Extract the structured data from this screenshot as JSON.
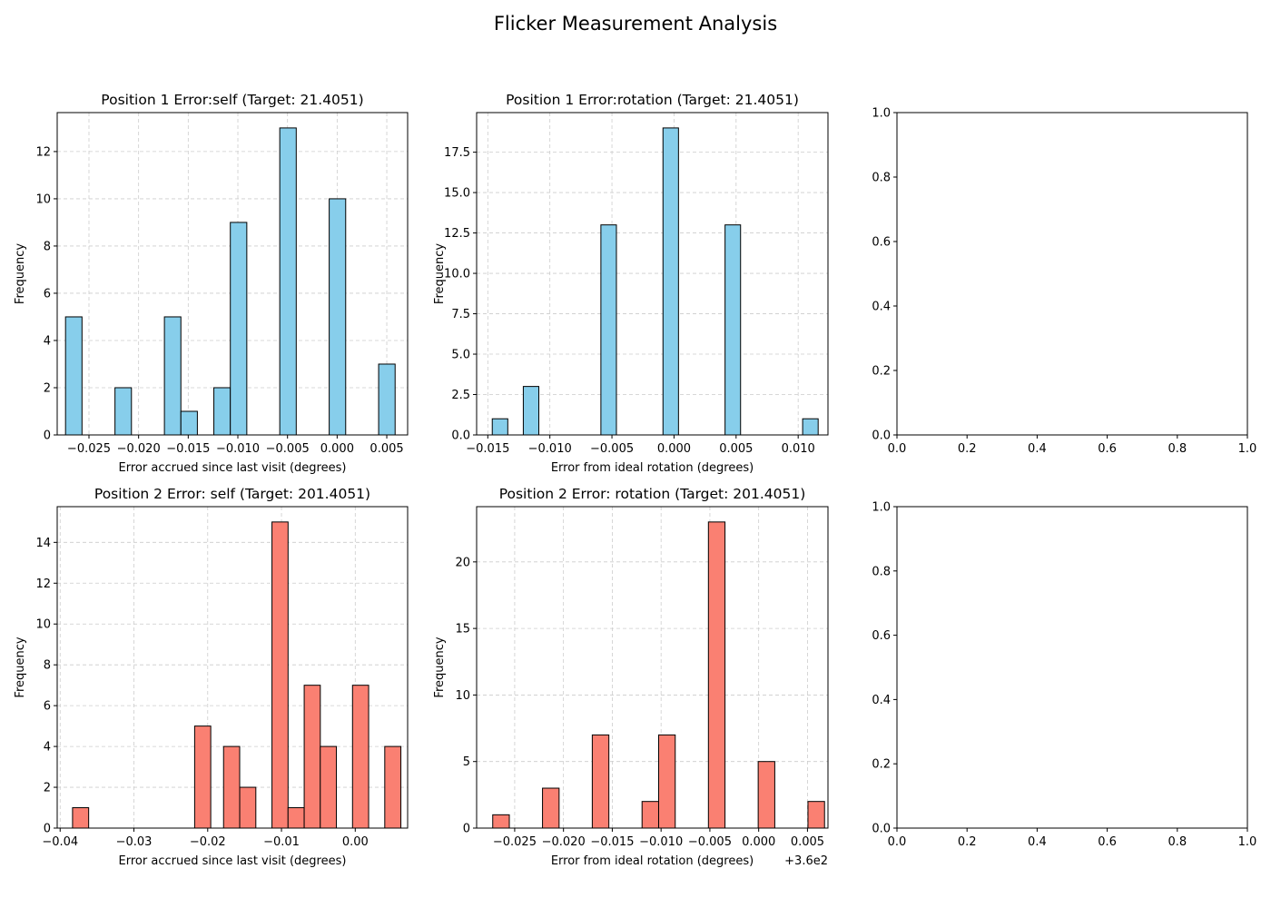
{
  "figure": {
    "title": "Flicker Measurement Analysis"
  },
  "colors": {
    "p1": "#87CEEB",
    "p2": "#FA8072",
    "edge": "#000000",
    "grid": "#cccccc"
  },
  "chart_data": [
    {
      "type": "bar",
      "title": "Position 1 Error:self (Target: 21.4051)",
      "xlabel": "Error accrued since last visit (degrees)",
      "ylabel": "Frequency",
      "xlim": [
        -0.0282,
        0.0071
      ],
      "ylim": [
        0,
        13.65
      ],
      "xticks": [
        -0.025,
        -0.02,
        -0.015,
        -0.01,
        -0.005,
        0.0,
        0.005
      ],
      "xticklabels": [
        "−0.025",
        "−0.020",
        "−0.015",
        "−0.010",
        "−0.005",
        "0.000",
        "0.005"
      ],
      "yticks": [
        0,
        2,
        4,
        6,
        8,
        10,
        12
      ],
      "yticklabels": [
        "0",
        "2",
        "4",
        "6",
        "8",
        "10",
        "12"
      ],
      "bin_width": 0.00166,
      "color": "p1",
      "grid": true,
      "bars": [
        {
          "x": -0.02736,
          "value": 5
        },
        {
          "x": -0.02238,
          "value": 2
        },
        {
          "x": -0.0174,
          "value": 5
        },
        {
          "x": -0.01574,
          "value": 1
        },
        {
          "x": -0.01242,
          "value": 2
        },
        {
          "x": -0.01076,
          "value": 9
        },
        {
          "x": -0.00578,
          "value": 13
        },
        {
          "x": -0.0008,
          "value": 10
        },
        {
          "x": 0.00418,
          "value": 3
        }
      ]
    },
    {
      "type": "bar",
      "title": "Position 1 Error:rotation (Target: 21.4051)",
      "xlabel": "Error from ideal rotation (degrees)",
      "ylabel": "Frequency",
      "xlim": [
        -0.0159,
        0.0124
      ],
      "ylim": [
        0,
        19.95
      ],
      "xticks": [
        -0.015,
        -0.01,
        -0.005,
        0.0,
        0.005,
        0.01
      ],
      "xticklabels": [
        "−0.015",
        "−0.010",
        "−0.005",
        "0.000",
        "0.005",
        "0.010"
      ],
      "yticks": [
        0,
        2.5,
        5,
        7.5,
        10,
        12.5,
        15,
        17.5
      ],
      "yticklabels": [
        "0.0",
        "2.5",
        "5.0",
        "7.5",
        "10.0",
        "12.5",
        "15.0",
        "17.5"
      ],
      "bin_width": 0.00125,
      "color": "p1",
      "grid": true,
      "bars": [
        {
          "x": -0.01464,
          "value": 1
        },
        {
          "x": -0.01214,
          "value": 3
        },
        {
          "x": -0.00589,
          "value": 13
        },
        {
          "x": -0.00089,
          "value": 19
        },
        {
          "x": 0.00411,
          "value": 13
        },
        {
          "x": 0.01036,
          "value": 1
        }
      ]
    },
    {
      "type": "bar",
      "title": "",
      "xlabel": "",
      "ylabel": "",
      "xlim": [
        0,
        1
      ],
      "ylim": [
        0,
        1
      ],
      "xticks": [
        0,
        0.2,
        0.4,
        0.6,
        0.8,
        1.0
      ],
      "xticklabels": [
        "0.0",
        "0.2",
        "0.4",
        "0.6",
        "0.8",
        "1.0"
      ],
      "yticks": [
        0,
        0.2,
        0.4,
        0.6,
        0.8,
        1.0
      ],
      "yticklabels": [
        "0.0",
        "0.2",
        "0.4",
        "0.6",
        "0.8",
        "1.0"
      ],
      "bin_width": 0,
      "color": "p1",
      "grid": false,
      "bars": []
    },
    {
      "type": "bar",
      "title": "Position 2 Error: self (Target: 201.4051)",
      "xlabel": "Error accrued since last visit  (degrees)",
      "ylabel": "Frequency",
      "xlim": [
        -0.0404,
        0.0071
      ],
      "ylim": [
        0,
        15.75
      ],
      "xticks": [
        -0.04,
        -0.03,
        -0.02,
        -0.01,
        0.0
      ],
      "xticklabels": [
        "−0.04",
        "−0.03",
        "−0.02",
        "−0.01",
        "0.00"
      ],
      "yticks": [
        0,
        2,
        4,
        6,
        8,
        10,
        12,
        14
      ],
      "yticklabels": [
        "0",
        "2",
        "4",
        "6",
        "8",
        "10",
        "12",
        "14"
      ],
      "bin_width": 0.002185,
      "color": "p2",
      "grid": true,
      "bars": [
        {
          "x": -0.03832,
          "value": 1
        },
        {
          "x": -0.02177,
          "value": 5
        },
        {
          "x": -0.01785,
          "value": 4
        },
        {
          "x": -0.01566,
          "value": 2
        },
        {
          "x": -0.01129,
          "value": 15
        },
        {
          "x": -0.00911,
          "value": 1
        },
        {
          "x": -0.00692,
          "value": 7
        },
        {
          "x": -0.00474,
          "value": 4
        },
        {
          "x": -0.00037,
          "value": 7
        },
        {
          "x": 0.004,
          "value": 4
        }
      ]
    },
    {
      "type": "bar",
      "title": "Position 2 Error: rotation (Target: 201.4051)",
      "xlabel": "Error from ideal rotation (degrees)",
      "ylabel": "Frequency",
      "offset_label": "+3.6e2",
      "xlim": [
        -0.0289,
        0.0071
      ],
      "ylim": [
        0,
        24.15
      ],
      "xticks": [
        -0.025,
        -0.02,
        -0.015,
        -0.01,
        -0.005,
        0.0,
        0.005
      ],
      "xticklabels": [
        "−0.025",
        "−0.020",
        "−0.015",
        "−0.010",
        "−0.005",
        "0.000",
        "0.005"
      ],
      "yticks": [
        0,
        5,
        10,
        15,
        20
      ],
      "yticklabels": [
        "0",
        "5",
        "10",
        "15",
        "20"
      ],
      "bin_width": 0.0017,
      "color": "p2",
      "grid": true,
      "bars": [
        {
          "x": -0.02725,
          "value": 1
        },
        {
          "x": -0.02215,
          "value": 3
        },
        {
          "x": -0.01705,
          "value": 7
        },
        {
          "x": -0.01195,
          "value": 2
        },
        {
          "x": -0.01025,
          "value": 7
        },
        {
          "x": -0.00515,
          "value": 23
        },
        {
          "x": -5e-05,
          "value": 5
        },
        {
          "x": 0.00505,
          "value": 2
        }
      ]
    },
    {
      "type": "bar",
      "title": "",
      "xlabel": "",
      "ylabel": "",
      "xlim": [
        0,
        1
      ],
      "ylim": [
        0,
        1
      ],
      "xticks": [
        0,
        0.2,
        0.4,
        0.6,
        0.8,
        1.0
      ],
      "xticklabels": [
        "0.0",
        "0.2",
        "0.4",
        "0.6",
        "0.8",
        "1.0"
      ],
      "yticks": [
        0,
        0.2,
        0.4,
        0.6,
        0.8,
        1.0
      ],
      "yticklabels": [
        "0.0",
        "0.2",
        "0.4",
        "0.6",
        "0.8",
        "1.0"
      ],
      "bin_width": 0,
      "color": "p1",
      "grid": false,
      "bars": []
    }
  ]
}
